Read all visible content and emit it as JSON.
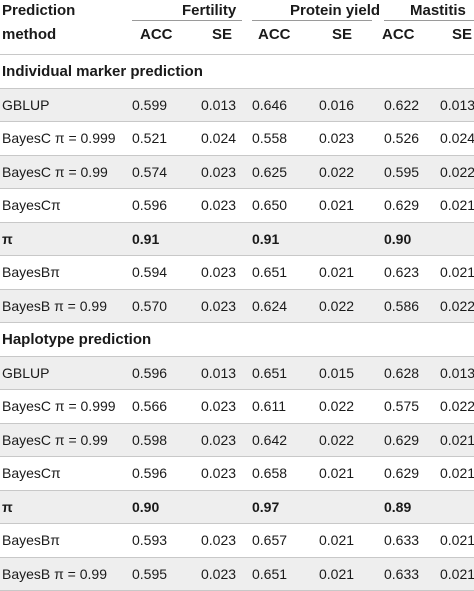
{
  "header": {
    "col0_line1": "Prediction",
    "col0_line2": "method",
    "groups": [
      "Fertility",
      "Protein yield",
      "Mastitis"
    ],
    "sub": [
      "ACC",
      "SE",
      "ACC",
      "SE",
      "ACC",
      "SE"
    ]
  },
  "sections": [
    {
      "title": "Individual marker prediction",
      "rows": [
        {
          "method": "GBLUP",
          "vals": [
            "0.599",
            "0.013",
            "0.646",
            "0.016",
            "0.622",
            "0.013"
          ],
          "bold": false
        },
        {
          "method": "BayesC π = 0.999",
          "vals": [
            "0.521",
            "0.024",
            "0.558",
            "0.023",
            "0.526",
            "0.024"
          ],
          "bold": false
        },
        {
          "method": "BayesC π = 0.99",
          "vals": [
            "0.574",
            "0.023",
            "0.625",
            "0.022",
            "0.595",
            "0.022"
          ],
          "bold": false
        },
        {
          "method": "BayesCπ",
          "vals": [
            "0.596",
            "0.023",
            "0.650",
            "0.021",
            "0.629",
            "0.021"
          ],
          "bold": false
        },
        {
          "method": "π",
          "vals": [
            "0.91",
            "",
            "0.91",
            "",
            "0.90",
            ""
          ],
          "bold": true
        },
        {
          "method": "BayesBπ",
          "vals": [
            "0.594",
            "0.023",
            "0.651",
            "0.021",
            "0.623",
            "0.021"
          ],
          "bold": false
        },
        {
          "method": "BayesB π = 0.99",
          "vals": [
            "0.570",
            "0.023",
            "0.624",
            "0.022",
            "0.586",
            "0.022"
          ],
          "bold": false
        }
      ]
    },
    {
      "title": "Haplotype prediction",
      "rows": [
        {
          "method": "GBLUP",
          "vals": [
            "0.596",
            "0.013",
            "0.651",
            "0.015",
            "0.628",
            "0.013"
          ],
          "bold": false
        },
        {
          "method": "BayesC π = 0.999",
          "vals": [
            "0.566",
            "0.023",
            "0.611",
            "0.022",
            "0.575",
            "0.022"
          ],
          "bold": false
        },
        {
          "method": "BayesC π = 0.99",
          "vals": [
            "0.598",
            "0.023",
            "0.642",
            "0.022",
            "0.629",
            "0.021"
          ],
          "bold": false
        },
        {
          "method": "BayesCπ",
          "vals": [
            "0.596",
            "0.023",
            "0.658",
            "0.021",
            "0.629",
            "0.021"
          ],
          "bold": false
        },
        {
          "method": "π",
          "vals": [
            "0.90",
            "",
            "0.97",
            "",
            "0.89",
            ""
          ],
          "bold": true
        },
        {
          "method": "BayesBπ",
          "vals": [
            "0.593",
            "0.023",
            "0.657",
            "0.021",
            "0.633",
            "0.021"
          ],
          "bold": false
        },
        {
          "method": "BayesB π = 0.99",
          "vals": [
            "0.595",
            "0.023",
            "0.651",
            "0.021",
            "0.633",
            "0.021"
          ],
          "bold": false
        }
      ]
    }
  ]
}
